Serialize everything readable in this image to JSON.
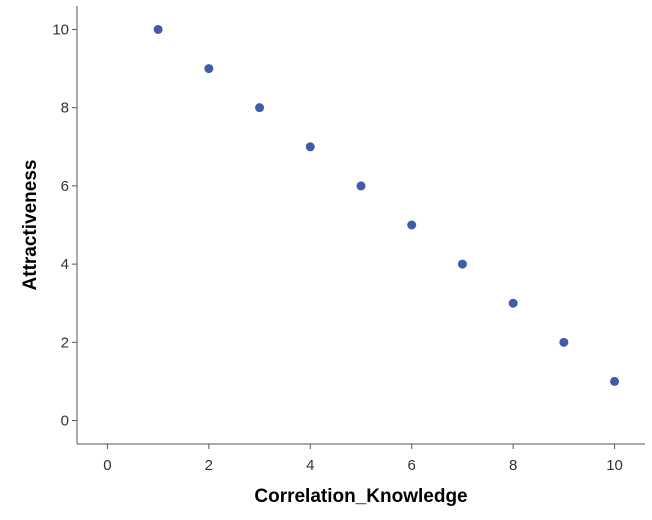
{
  "chart_data": {
    "type": "scatter",
    "title": "",
    "xlabel": "Correlation_Knowledge",
    "ylabel": "Attractiveness",
    "xlim": [
      -0.6,
      10.6
    ],
    "ylim": [
      -0.6,
      10.6
    ],
    "xticks": [
      "0",
      "2",
      "4",
      "6",
      "8",
      "10"
    ],
    "yticks": [
      "0",
      "2",
      "4",
      "6",
      "8",
      "10"
    ],
    "grid": false,
    "marker_color": "#3f5ba9",
    "points": [
      {
        "x": 1,
        "y": 10
      },
      {
        "x": 2,
        "y": 9
      },
      {
        "x": 3,
        "y": 8
      },
      {
        "x": 4,
        "y": 7
      },
      {
        "x": 5,
        "y": 6
      },
      {
        "x": 6,
        "y": 5
      },
      {
        "x": 7,
        "y": 4
      },
      {
        "x": 8,
        "y": 3
      },
      {
        "x": 9,
        "y": 2
      },
      {
        "x": 10,
        "y": 1
      }
    ]
  }
}
